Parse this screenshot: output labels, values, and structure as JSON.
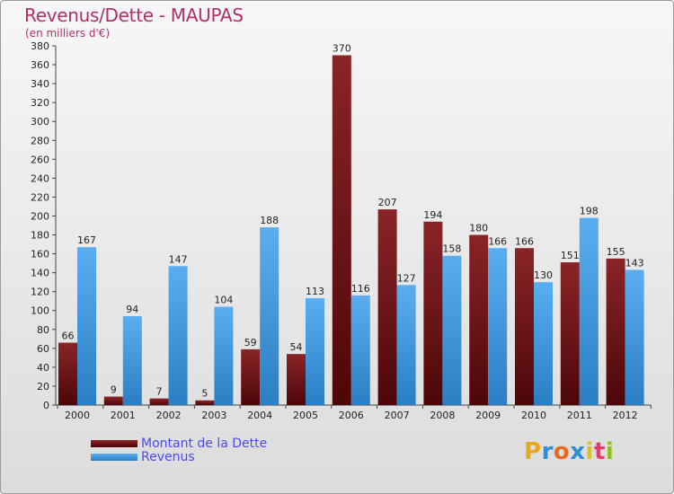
{
  "header": {
    "title": "Revenus/Dette - MAUPAS",
    "subtitle": "(en milliers d'€)"
  },
  "legend": [
    {
      "label": "Montant de la Dette",
      "color": "#6b0f12"
    },
    {
      "label": "Revenus",
      "color": "#3f97dc"
    }
  ],
  "brand": {
    "letters": [
      "P",
      "r",
      "o",
      "x",
      "i",
      "t",
      "i"
    ],
    "colors": [
      "#e8a81c",
      "#2e8fd6",
      "#e86a1c",
      "#2e8fd6",
      "#d9c21c",
      "#e83a6a",
      "#8fc21c"
    ]
  },
  "chart_data": {
    "type": "bar",
    "title": "Revenus/Dette - MAUPAS",
    "subtitle": "(en milliers d'€)",
    "categories": [
      "2000",
      "2001",
      "2002",
      "2003",
      "2004",
      "2005",
      "2006",
      "2007",
      "2008",
      "2009",
      "2010",
      "2011",
      "2012"
    ],
    "series": [
      {
        "name": "Montant de la Dette",
        "color": "#6b0f12",
        "values": [
          66,
          9,
          7,
          5,
          59,
          54,
          370,
          207,
          194,
          180,
          166,
          151,
          155
        ]
      },
      {
        "name": "Revenus",
        "color": "#3f97dc",
        "values": [
          167,
          94,
          147,
          104,
          188,
          113,
          116,
          127,
          158,
          166,
          130,
          198,
          143
        ]
      }
    ],
    "ylim": [
      0,
      380
    ],
    "ytick_step": 20,
    "yticks": [
      "0",
      "20",
      "40",
      "60",
      "80",
      "100",
      "120",
      "140",
      "160",
      "180",
      "200",
      "220",
      "240",
      "260",
      "280",
      "300",
      "320",
      "340",
      "360",
      "380"
    ],
    "grid": false,
    "legend_position": "bottom-left"
  }
}
